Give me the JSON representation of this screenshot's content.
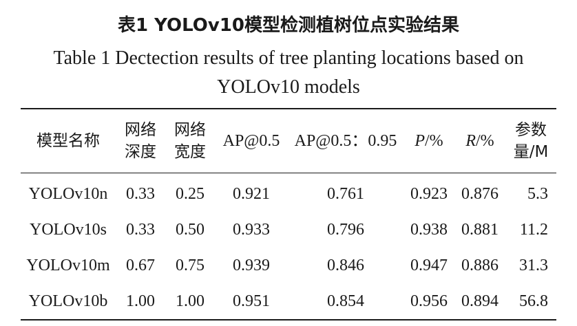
{
  "title_cn": "表1  YOLOv10模型检测植树位点实验结果",
  "title_en_line1": "Table 1  Dectection results of  tree planting locations based on",
  "title_en_line2": "YOLOv10 models",
  "headers": {
    "model_name": "模型名称",
    "depth_line1": "网络",
    "depth_line2": "深度",
    "width_line1": "网络",
    "width_line2": "宽度",
    "ap50": "AP@0.5",
    "ap5095": "AP@0.5：0.95",
    "p_var": "P",
    "p_unit": "/%",
    "r_var": "R",
    "r_unit": "/%",
    "params_line1": "参数",
    "params_line2": "量/M"
  },
  "rows": [
    [
      "YOLOv10n",
      "0.33",
      "0.25",
      "0.921",
      "0.761",
      "0.923",
      "0.876",
      "5.3"
    ],
    [
      "YOLOv10s",
      "0.33",
      "0.50",
      "0.933",
      "0.796",
      "0.938",
      "0.881",
      "11.2"
    ],
    [
      "YOLOv10m",
      "0.67",
      "0.75",
      "0.939",
      "0.846",
      "0.947",
      "0.886",
      "31.3"
    ],
    [
      "YOLOv10b",
      "1.00",
      "1.00",
      "0.951",
      "0.854",
      "0.956",
      "0.894",
      "56.8"
    ]
  ]
}
